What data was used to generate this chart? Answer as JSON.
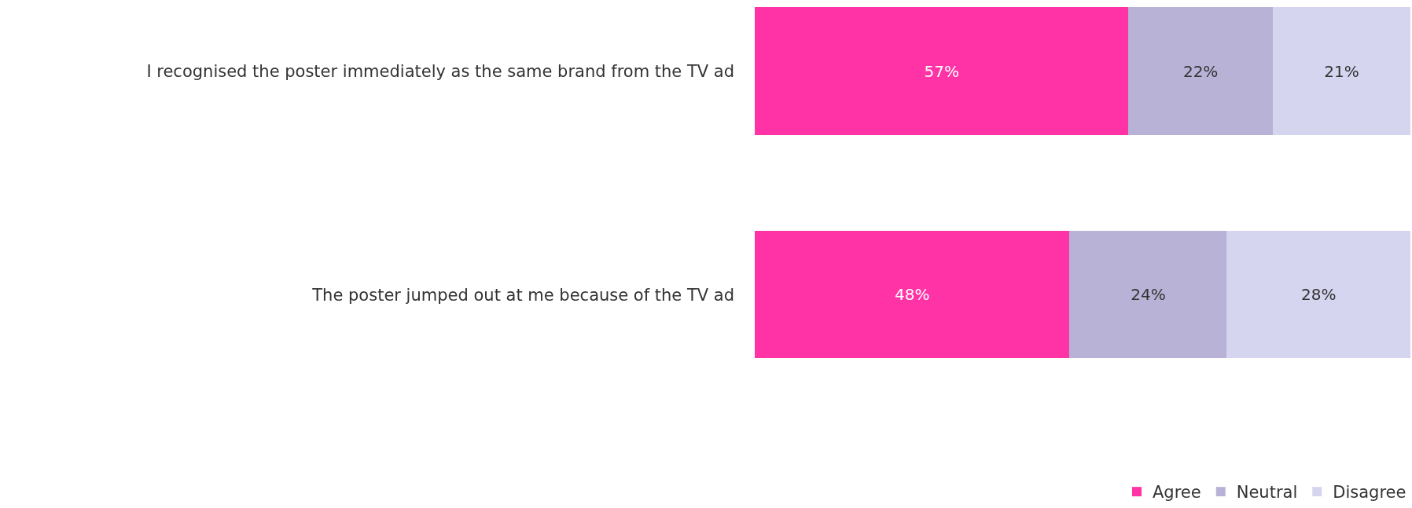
{
  "chart_data": {
    "type": "bar",
    "orientation": "horizontal",
    "stacked": true,
    "categories": [
      "I recognised the poster immediately as the same brand from the TV ad",
      "The poster jumped out at me because of the TV ad"
    ],
    "series": [
      {
        "name": "Agree",
        "color": "#ff33a6",
        "values": [
          57,
          48
        ],
        "value_labels": [
          "57%",
          "48%"
        ]
      },
      {
        "name": "Neutral",
        "color": "#b8b3d6",
        "values": [
          22,
          24
        ],
        "value_labels": [
          "22%",
          "24%"
        ]
      },
      {
        "name": "Disagree",
        "color": "#d5d5f0",
        "values": [
          21,
          28
        ],
        "value_labels": [
          "21%",
          "28%"
        ]
      }
    ],
    "xlim": [
      0,
      100
    ],
    "tick_labels": "y",
    "legend": "bottom right"
  }
}
